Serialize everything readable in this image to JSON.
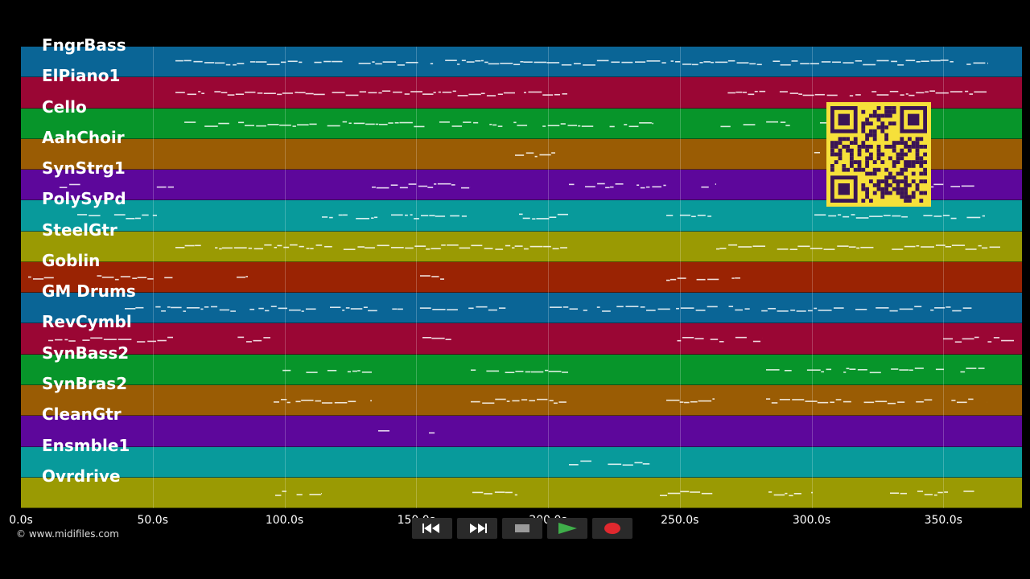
{
  "app": {
    "copyright": "© www.midifiles.com"
  },
  "timeline": {
    "ticks": [
      "0.0s",
      "50.0s",
      "100.0s",
      "150.0s",
      "200.0s",
      "250.0s",
      "300.0s",
      "350.0s"
    ]
  },
  "tracks": [
    {
      "name": "FngrBass",
      "color": "#0a6596"
    },
    {
      "name": "ElPiano1",
      "color": "#9a0634"
    },
    {
      "name": "Cello",
      "color": "#07952a"
    },
    {
      "name": "AahChoir",
      "color": "#9a5c04"
    },
    {
      "name": "SynStrg1",
      "color": "#5d079b"
    },
    {
      "name": "PolySyPd",
      "color": "#089a9b"
    },
    {
      "name": "SteelGtr",
      "color": "#9a9a03"
    },
    {
      "name": "Goblin",
      "color": "#9a2303"
    },
    {
      "name": "GM Drums",
      "color": "#0a6596"
    },
    {
      "name": "RevCymbl",
      "color": "#9a0634"
    },
    {
      "name": "SynBass2",
      "color": "#07952a"
    },
    {
      "name": "SynBras2",
      "color": "#9a5c04"
    },
    {
      "name": "CleanGtr",
      "color": "#5d079b"
    },
    {
      "name": "Ensmble1",
      "color": "#089a9b"
    },
    {
      "name": "Ovrdrive",
      "color": "#9a9a03"
    }
  ],
  "controls": {
    "rewind": "rewind-icon",
    "fast_forward": "fast-forward-icon",
    "stop": "stop-icon",
    "play": "play-icon",
    "record": "record-icon",
    "play_color": "#3fae4a",
    "record_color": "#e0282e"
  },
  "qr": {
    "color": "#f6e03a"
  }
}
